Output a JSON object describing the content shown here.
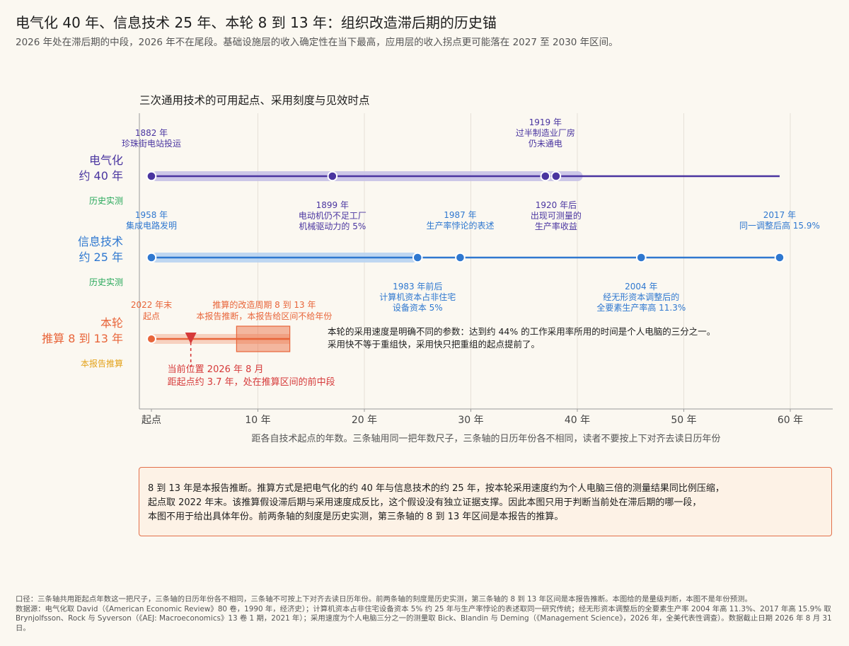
{
  "header": {
    "title": "电气化 40 年、信息技术 25 年、本轮 8 到 13 年：组织改造滞后期的历史锚",
    "subtitle": "2026 年处在滞后期的中段，2026 年不在尾段。基础设施层的收入确定性在当下最高，应用层的收入拐点更可能落在 2027 至 2030 年区间。"
  },
  "chart_data": {
    "type": "timeline",
    "title": "三次通用技术的可用起点、采用刻度与见效时点",
    "xlabel": "距各自技术起点的年数。三条轴用同一把年数尺子，三条轴的日历年份各不相同，读者不要按上下对齐去读日历年份",
    "xlim": [
      -1,
      64
    ],
    "ticks": [
      {
        "value": 0,
        "label": "起点"
      },
      {
        "value": 10,
        "label": "10 年"
      },
      {
        "value": 20,
        "label": "20 年"
      },
      {
        "value": 30,
        "label": "30 年"
      },
      {
        "value": 40,
        "label": "40 年"
      },
      {
        "value": 50,
        "label": "50 年"
      },
      {
        "value": 60,
        "label": "60 年"
      }
    ],
    "grid": "vertical",
    "colors": {
      "electric": "#4A35A0",
      "electric_band": "#C7C1E6",
      "it": "#2F78D0",
      "it_band": "#B8D3F1",
      "current": "#E8653A",
      "current_band": "#F6C4AE",
      "marker": "#D63A3A",
      "status": "#27A85A",
      "status_est": "#E3A21A"
    },
    "rows": [
      {
        "name": "电气化",
        "duration": "约 40 年",
        "status": "历史实测",
        "line_end": 59,
        "band": [
          0,
          40.5
        ],
        "events": [
          {
            "offset": 0,
            "label": [
              "1882 年",
              "珍珠街电站投运"
            ],
            "pos": "above"
          },
          {
            "offset": 17,
            "label": [
              "1899 年",
              "电动机仍不足工厂",
              "机械驱动力的 5%"
            ],
            "pos": "below"
          },
          {
            "offset": 37,
            "label": [
              "1919 年",
              "过半制造业厂房",
              "仍未通电"
            ],
            "pos": "above"
          },
          {
            "offset": 38,
            "label": [
              "1920 年后",
              "出现可测量的",
              "生产率收益"
            ],
            "pos": "below"
          }
        ]
      },
      {
        "name": "信息技术",
        "duration": "约 25 年",
        "status": "历史实测",
        "line_end": 59,
        "band": [
          0,
          25
        ],
        "events": [
          {
            "offset": 0,
            "label": [
              "1958 年",
              "集成电路发明"
            ],
            "pos": "above"
          },
          {
            "offset": 25,
            "label": [
              "1983 年前后",
              "计算机资本占非住宅",
              "设备资本 5%"
            ],
            "pos": "below"
          },
          {
            "offset": 29,
            "label": [
              "1987 年",
              "生产率悖论的表述"
            ],
            "pos": "above"
          },
          {
            "offset": 46,
            "label": [
              "2004 年",
              "经无形资本调整后的",
              "全要素生产率高 11.3%"
            ],
            "pos": "below"
          },
          {
            "offset": 59,
            "label": [
              "2017 年",
              "同一调整后高 15.9%"
            ],
            "pos": "above"
          }
        ]
      },
      {
        "name": "本轮",
        "duration": "推算 8 到 13 年",
        "status": "本报告推算",
        "line_end": 13,
        "band": [
          0,
          13
        ],
        "window": [
          8,
          13
        ],
        "start_label": [
          "2022 年末",
          "起点"
        ],
        "window_label": [
          "推算的改造周期 8 到 13 年",
          "本报告推断，本报告给区间不给年份"
        ],
        "current_offset": 3.7,
        "current_label": [
          "当前位置 2026 年 8 月",
          "距起点约 3.7 年，处在推算区间的前中段"
        ],
        "annotation": [
          "本轮的采用速度是明确不同的参数：达到约 44% 的工作采用率所用的时间是个人电脑的三分之一。",
          "采用快不等于重组快，采用快只把重组的起点提前了。"
        ]
      }
    ]
  },
  "note": {
    "lines": [
      "8 到 13 年是本报告推断。推算方式是把电气化的约 40 年与信息技术的约 25 年，按本轮采用速度约为个人电脑三倍的测量结果同比例压缩，",
      "起点取 2022 年末。该推算假设滞后期与采用速度成反比，这个假设没有独立证据支撑。因此本图只用于判断当前处在滞后期的哪一段，",
      "本图不用于给出具体年份。前两条轴的刻度是历史实测，第三条轴的 8 到 13 年区间是本报告的推算。"
    ]
  },
  "footer": {
    "lines": [
      "口径：三条轴共用距起点年数这一把尺子，三条轴的日历年份各不相同，三条轴不可按上下对齐去读日历年份。前两条轴的刻度是历史实测，第三条轴的 8 到 13 年区间是本报告推断。本图给的是量级判断，本图不是年份预测。",
      "数据源：电气化取 David（《American Economic Review》80 卷，1990 年，经济史）；计算机资本占非住宅设备资本 5% 约 25 年与生产率悖论的表述取同一研究传统；经无形资本调整后的全要素生产率 2004 年高 11.3%、2017 年高 15.9% 取 Brynjolfsson、Rock 与 Syverson（《AEJ: Macroeconomics》13 卷 1 期，2021 年）；采用速度为个人电脑三分之一的测量取 Bick、Blandin 与 Deming（《Management Science》，2026 年，全美代表性调查）。数据截止日期 2026 年 8 月 31 日。"
    ]
  }
}
